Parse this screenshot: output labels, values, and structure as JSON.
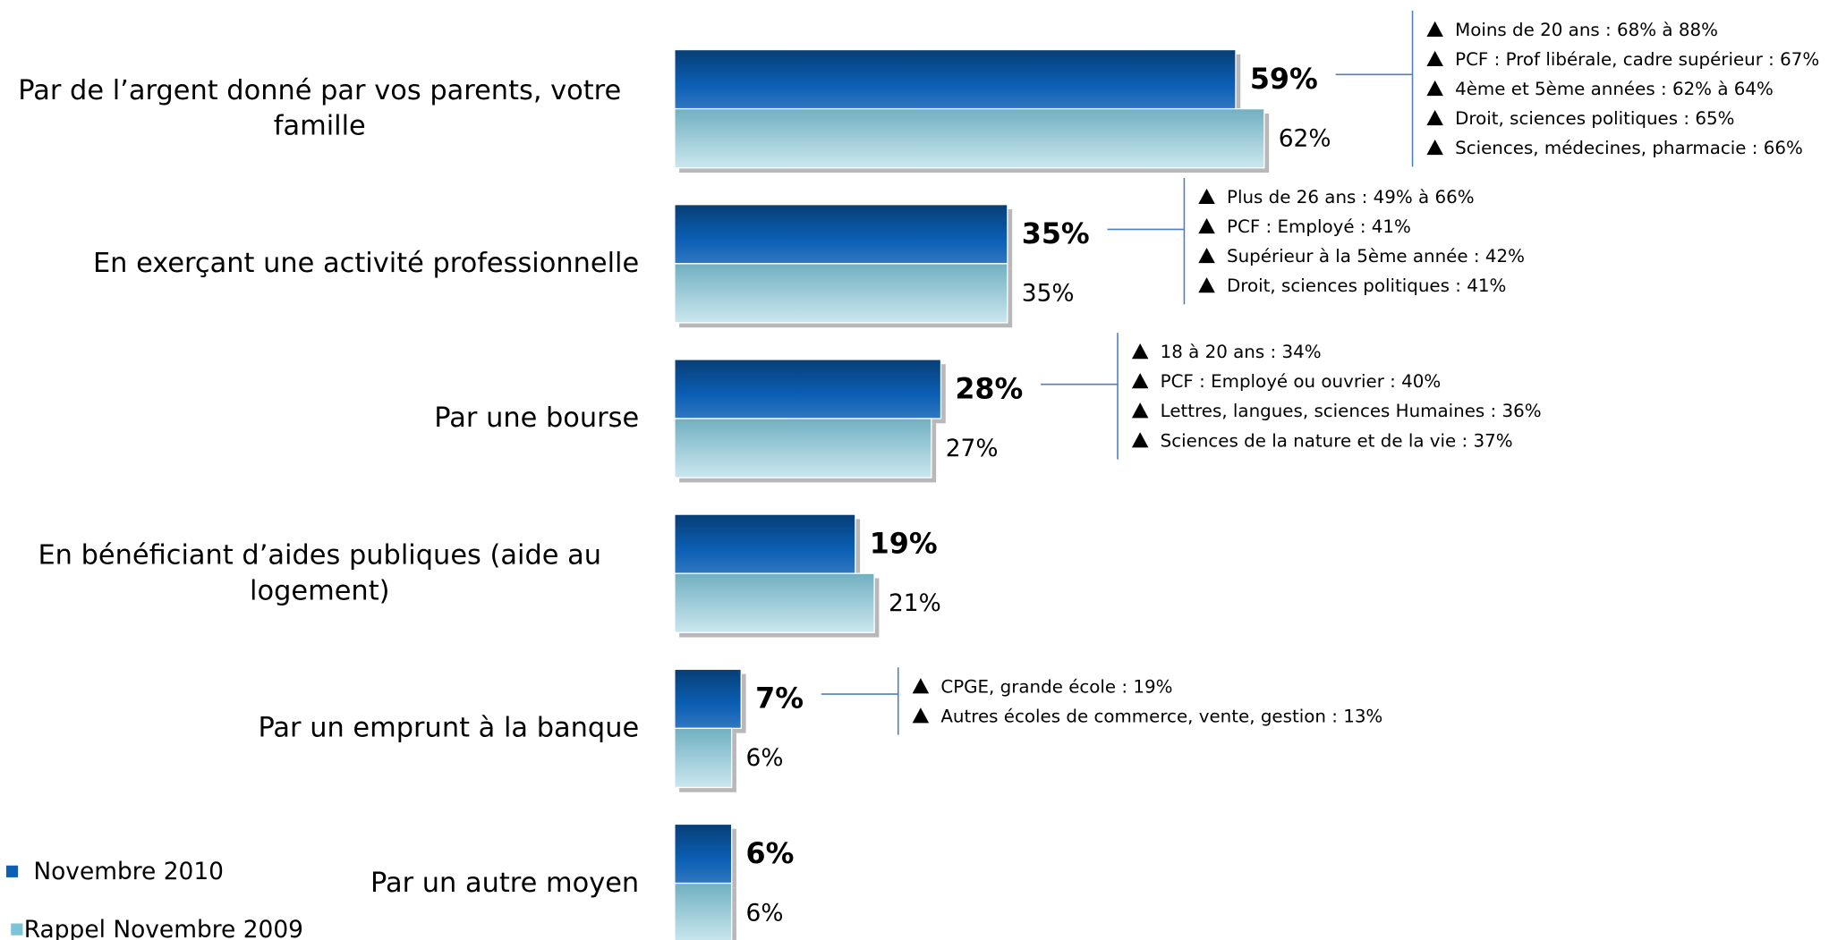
{
  "chart_data": {
    "type": "bar",
    "orientation": "horizontal",
    "categories": [
      "Par de l’argent donné par vos parents, votre famille",
      "En exerçant une activité professionnelle",
      "Par une bourse",
      "En bénéficiant d’aides publiques (aide au logement)",
      "Par un emprunt à la banque",
      "Par un autre moyen"
    ],
    "series": [
      {
        "name": "Novembre 2010",
        "color": "#0b5fb5",
        "values": [
          59,
          35,
          28,
          19,
          7,
          6
        ],
        "value_labels": [
          "59%",
          "35%",
          "28%",
          "19%",
          "7%",
          "6%"
        ]
      },
      {
        "name": "Rappel Novembre 2009",
        "color": "#7cc3d6",
        "values": [
          62,
          35,
          27,
          21,
          6,
          6
        ],
        "value_labels": [
          "62%",
          "35%",
          "27%",
          "21%",
          "6%",
          "6%"
        ]
      }
    ],
    "annotations": [
      [
        "Moins de 20 ans : 68% à 88%",
        "PCF : Prof libérale, cadre supérieur : 67%",
        "4ème et 5ème années : 62% à 64%",
        "Droit, sciences politiques : 65%",
        "Sciences, médecines, pharmacie : 66%"
      ],
      [
        "Plus de 26 ans : 49% à 66%",
        "PCF : Employé : 41%",
        "Supérieur à la 5ème année : 42%",
        "Droit, sciences politiques : 41%"
      ],
      [
        "18 à 20 ans : 34%",
        "PCF : Employé ou ouvrier : 40%",
        "Lettres, langues, sciences Humaines : 36%",
        "Sciences de la nature et de la vie : 37%"
      ],
      null,
      [
        "CPGE, grande école : 19%",
        "Autres écoles de commerce, vente, gestion : 13%"
      ],
      null
    ],
    "legend": "bottom-left"
  }
}
